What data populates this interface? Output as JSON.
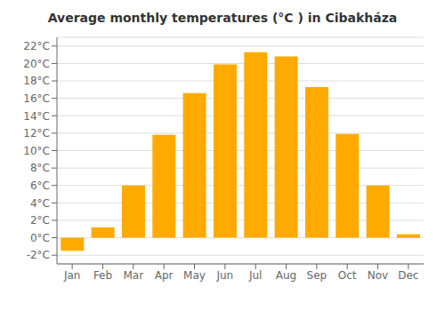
{
  "chart_data": {
    "type": "bar",
    "title": "Average monthly temperatures (°C ) in Cibakháza",
    "categories": [
      "Jan",
      "Feb",
      "Mar",
      "Apr",
      "May",
      "Jun",
      "Jul",
      "Aug",
      "Sep",
      "Oct",
      "Nov",
      "Dec"
    ],
    "values": [
      -1.5,
      1.2,
      6.0,
      11.8,
      16.6,
      19.9,
      21.3,
      20.8,
      17.3,
      11.9,
      6.0,
      0.4
    ],
    "color": "#FFAA00",
    "ylim": [
      -3,
      23
    ],
    "yticks": [
      {
        "value": -2,
        "label": "-2°C"
      },
      {
        "value": 0,
        "label": "0°C"
      },
      {
        "value": 2,
        "label": "2°C"
      },
      {
        "value": 4,
        "label": "4°C"
      },
      {
        "value": 6,
        "label": "6°C"
      },
      {
        "value": 8,
        "label": "8°C"
      },
      {
        "value": 10,
        "label": "10°C"
      },
      {
        "value": 12,
        "label": "12°C"
      },
      {
        "value": 14,
        "label": "14°C"
      },
      {
        "value": 16,
        "label": "16°C"
      },
      {
        "value": 18,
        "label": "18°C"
      },
      {
        "value": 20,
        "label": "20°C"
      },
      {
        "value": 22,
        "label": "22°C"
      }
    ],
    "grid": true
  }
}
